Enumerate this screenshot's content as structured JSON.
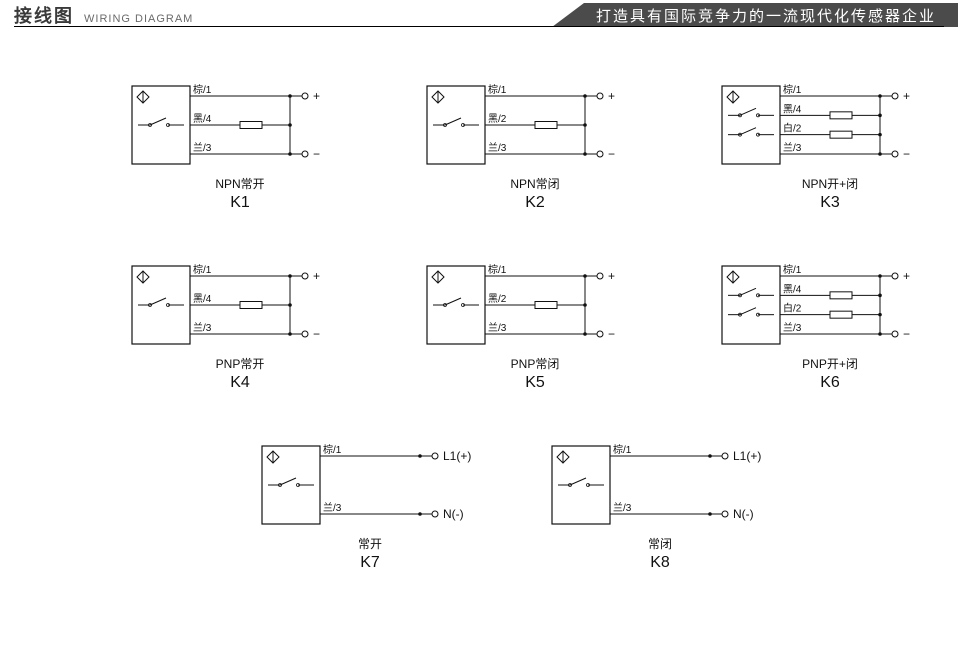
{
  "header": {
    "title_cn": "接线图",
    "title_en": "WIRING DIAGRAM",
    "banner": "打造具有国际竞争力的一流现代化传感器企业"
  },
  "colors": {
    "bg": "#ffffff",
    "stroke": "#111111",
    "text": "#111111",
    "banner_bg": "#4b4b4b",
    "banner_text": "#ffffff"
  },
  "diagrams": [
    {
      "id": "K1",
      "type_label": "NPN常开",
      "code": "K1",
      "wires": [
        {
          "label": "棕/1",
          "terminal": "+",
          "has_resistor": false,
          "switch": false
        },
        {
          "label": "黑/4",
          "terminal": "",
          "has_resistor": true,
          "switch": true
        },
        {
          "label": "兰/3",
          "terminal": "−",
          "has_resistor": false,
          "switch": false
        }
      ]
    },
    {
      "id": "K2",
      "type_label": "NPN常闭",
      "code": "K2",
      "wires": [
        {
          "label": "棕/1",
          "terminal": "+",
          "has_resistor": false,
          "switch": false
        },
        {
          "label": "黑/2",
          "terminal": "",
          "has_resistor": true,
          "switch": true
        },
        {
          "label": "兰/3",
          "terminal": "−",
          "has_resistor": false,
          "switch": false
        }
      ]
    },
    {
      "id": "K3",
      "type_label": "NPN开+闭",
      "code": "K3",
      "wires": [
        {
          "label": "棕/1",
          "terminal": "+",
          "has_resistor": false,
          "switch": false
        },
        {
          "label": "黑/4",
          "terminal": "",
          "has_resistor": true,
          "switch": true
        },
        {
          "label": "白/2",
          "terminal": "",
          "has_resistor": true,
          "switch": true
        },
        {
          "label": "兰/3",
          "terminal": "−",
          "has_resistor": false,
          "switch": false
        }
      ]
    },
    {
      "id": "K4",
      "type_label": "PNP常开",
      "code": "K4",
      "wires": [
        {
          "label": "棕/1",
          "terminal": "+",
          "has_resistor": false,
          "switch": false
        },
        {
          "label": "黑/4",
          "terminal": "",
          "has_resistor": true,
          "switch": true
        },
        {
          "label": "兰/3",
          "terminal": "−",
          "has_resistor": false,
          "switch": false
        }
      ]
    },
    {
      "id": "K5",
      "type_label": "PNP常闭",
      "code": "K5",
      "wires": [
        {
          "label": "棕/1",
          "terminal": "+",
          "has_resistor": false,
          "switch": false
        },
        {
          "label": "黑/2",
          "terminal": "",
          "has_resistor": true,
          "switch": true
        },
        {
          "label": "兰/3",
          "terminal": "−",
          "has_resistor": false,
          "switch": false
        }
      ]
    },
    {
      "id": "K6",
      "type_label": "PNP开+闭",
      "code": "K6",
      "wires": [
        {
          "label": "棕/1",
          "terminal": "+",
          "has_resistor": false,
          "switch": false
        },
        {
          "label": "黑/4",
          "terminal": "",
          "has_resistor": true,
          "switch": true
        },
        {
          "label": "白/2",
          "terminal": "",
          "has_resistor": true,
          "switch": true
        },
        {
          "label": "兰/3",
          "terminal": "−",
          "has_resistor": false,
          "switch": false
        }
      ]
    },
    {
      "id": "K7",
      "type_label": "常开",
      "code": "K7",
      "wires": [
        {
          "label": "棕/1",
          "terminal": "L1(+)",
          "has_resistor": false,
          "switch": false
        },
        {
          "label": "",
          "terminal": "",
          "has_resistor": false,
          "switch": true,
          "internal_only": true
        },
        {
          "label": "兰/3",
          "terminal": "N(-)",
          "has_resistor": false,
          "switch": false
        }
      ]
    },
    {
      "id": "K8",
      "type_label": "常闭",
      "code": "K8",
      "wires": [
        {
          "label": "棕/1",
          "terminal": "L1(+)",
          "has_resistor": false,
          "switch": false
        },
        {
          "label": "",
          "terminal": "",
          "has_resistor": false,
          "switch": true,
          "internal_only": true
        },
        {
          "label": "兰/3",
          "terminal": "N(-)",
          "has_resistor": false,
          "switch": false
        }
      ]
    }
  ],
  "style": {
    "box_stroke": 1.2,
    "wire_stroke": 1.0,
    "font_label": 10,
    "font_terminal": 12,
    "font_type": 12,
    "font_code": 16,
    "circle_r": 3,
    "resistor_w": 22,
    "resistor_h": 7
  }
}
